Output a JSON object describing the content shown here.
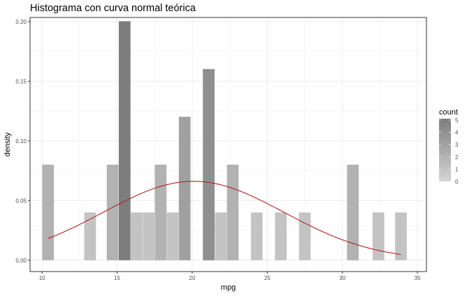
{
  "chart_data": {
    "type": "bar",
    "title": "Histograma con curva normal teórica",
    "xlabel": "mpg",
    "ylabel": "density",
    "xlim": [
      9.2,
      35.6
    ],
    "ylim": [
      -0.0095,
      0.2035
    ],
    "x_ticks": [
      10,
      15,
      20,
      25,
      30,
      35
    ],
    "y_ticks": [
      0.0,
      0.05,
      0.1,
      0.15,
      0.2
    ],
    "y_tick_labels": [
      "0.00",
      "0.05",
      "0.10",
      "0.15",
      "0.20"
    ],
    "grid": true,
    "legend_placement": "right",
    "bin_width": 0.78,
    "bins": [
      {
        "center": 10.4,
        "count": 2
      },
      {
        "center": 13.2,
        "count": 1
      },
      {
        "center": 14.7,
        "count": 2
      },
      {
        "center": 15.5,
        "count": 5
      },
      {
        "center": 16.3,
        "count": 1
      },
      {
        "center": 17.1,
        "count": 1
      },
      {
        "center": 17.9,
        "count": 2
      },
      {
        "center": 18.7,
        "count": 1
      },
      {
        "center": 19.5,
        "count": 3
      },
      {
        "center": 21.1,
        "count": 4
      },
      {
        "center": 21.9,
        "count": 1
      },
      {
        "center": 22.7,
        "count": 2
      },
      {
        "center": 24.3,
        "count": 1
      },
      {
        "center": 25.9,
        "count": 1
      },
      {
        "center": 27.5,
        "count": 1
      },
      {
        "center": 30.7,
        "count": 2
      },
      {
        "center": 32.4,
        "count": 1
      },
      {
        "center": 33.9,
        "count": 1
      }
    ],
    "normal_curve": {
      "mean": 20.09,
      "sd": 6.03,
      "from": 10.4,
      "to": 33.9,
      "color": "#b2221f"
    },
    "legend": {
      "title": "count",
      "breaks": [
        0,
        1,
        2,
        3,
        4,
        5
      ],
      "low_color": "#d5d5d5",
      "high_color": "#7d7d7d"
    }
  }
}
